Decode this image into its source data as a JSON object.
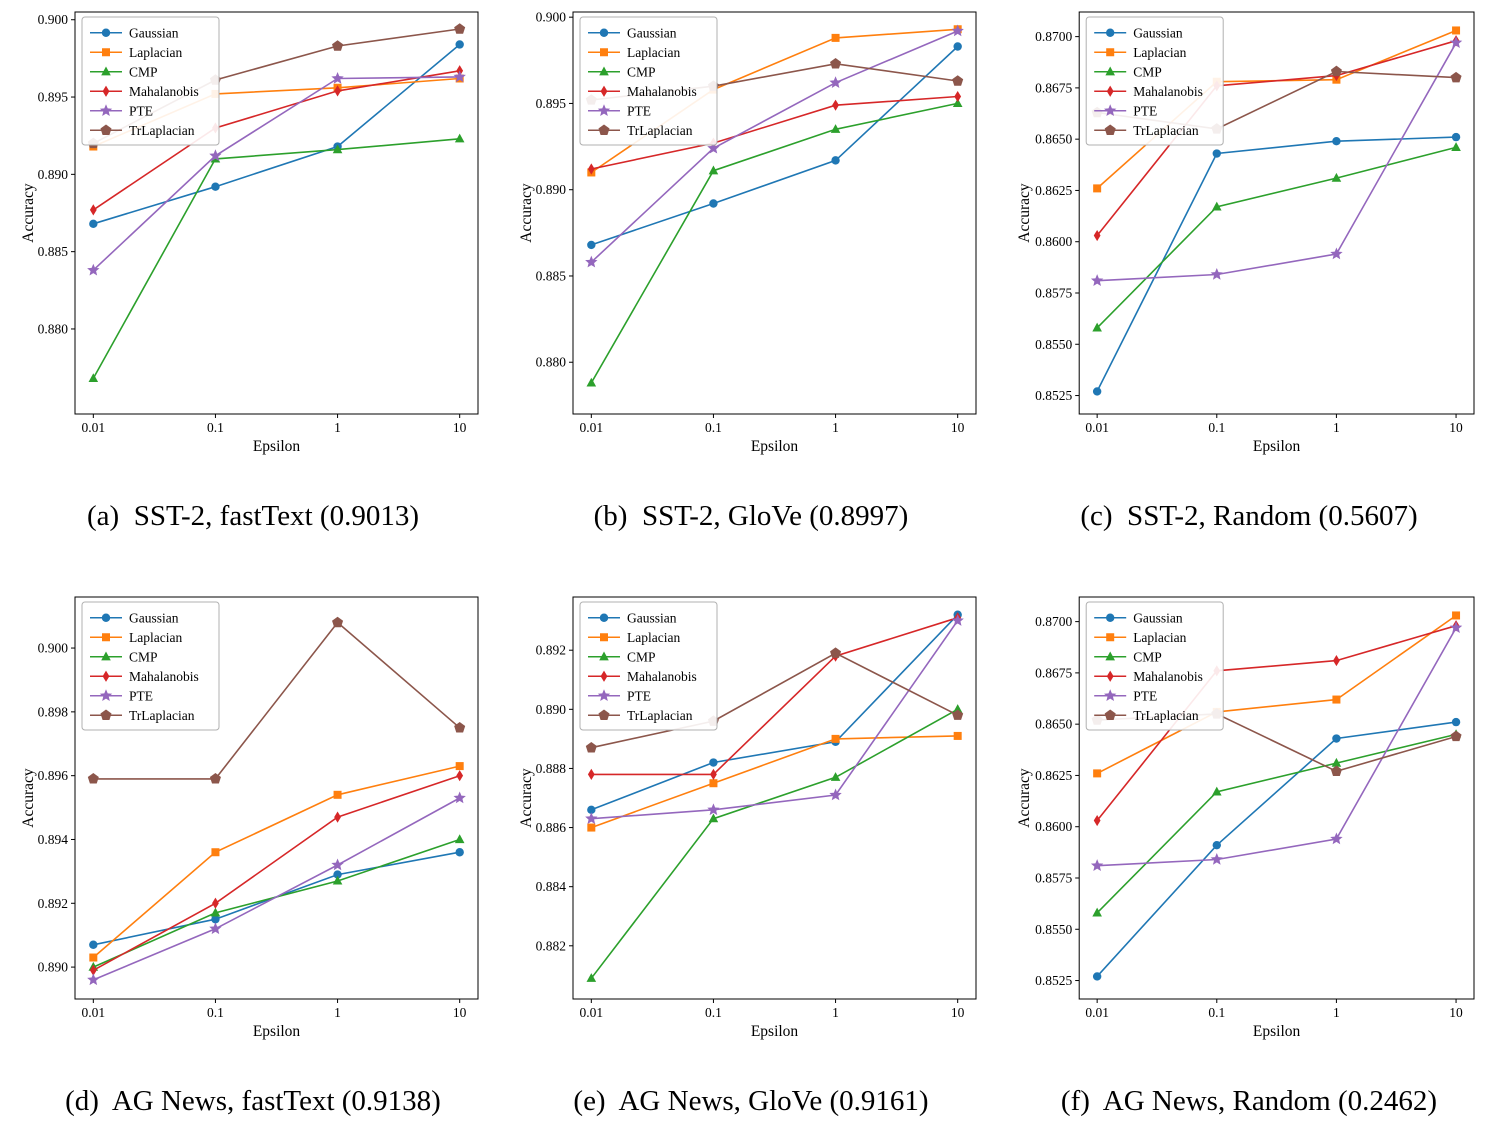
{
  "figure": {
    "background": "#ffffff",
    "xlabel": "Epsilon",
    "ylabel": "Accuracy",
    "legend_entries": [
      "Gaussian",
      "Laplacian",
      "CMP",
      "Mahalanobis",
      "PTE",
      "TrLaplacian"
    ],
    "series_colors": {
      "Gaussian": "#1f77b4",
      "Laplacian": "#ff7f0e",
      "CMP": "#2ca02c",
      "Mahalanobis": "#d62728",
      "PTE": "#9467bd",
      "TrLaplacian": "#8c564b"
    }
  },
  "chart_data": [
    {
      "id": "a",
      "type": "line",
      "caption": "(a)  SST-2, fastText (0.9013)",
      "xlabel": "Epsilon",
      "ylabel": "Accuracy",
      "xscale": "log",
      "x": [
        0.01,
        0.1,
        1,
        10
      ],
      "xticklabels": [
        "0.01",
        "0.1",
        "1",
        "10"
      ],
      "ylim": [
        0.8745,
        0.9005
      ],
      "yticks": [
        0.88,
        0.885,
        0.89,
        0.895,
        0.9
      ],
      "ytick_decimals": 3,
      "legend_position": "upper left",
      "series": [
        {
          "name": "Gaussian",
          "color": "#1f77b4",
          "marker": "circle",
          "values": [
            0.8868,
            0.8892,
            0.8918,
            0.8984
          ]
        },
        {
          "name": "Laplacian",
          "color": "#ff7f0e",
          "marker": "square",
          "values": [
            0.8918,
            0.8952,
            0.8956,
            0.8962
          ]
        },
        {
          "name": "CMP",
          "color": "#2ca02c",
          "marker": "triangle-up",
          "values": [
            0.8768,
            0.891,
            0.8916,
            0.8923
          ]
        },
        {
          "name": "Mahalanobis",
          "color": "#d62728",
          "marker": "thin-diamond",
          "values": [
            0.8877,
            0.893,
            0.8954,
            0.8967
          ]
        },
        {
          "name": "PTE",
          "color": "#9467bd",
          "marker": "star",
          "values": [
            0.8838,
            0.8912,
            0.8962,
            0.8963
          ]
        },
        {
          "name": "TrLaplacian",
          "color": "#8c564b",
          "marker": "pentagon",
          "values": [
            0.892,
            0.8961,
            0.8983,
            0.8994
          ]
        }
      ]
    },
    {
      "id": "b",
      "type": "line",
      "caption": "(b)  SST-2, GloVe (0.8997)",
      "xlabel": "Epsilon",
      "ylabel": "Accuracy",
      "xscale": "log",
      "x": [
        0.01,
        0.1,
        1,
        10
      ],
      "xticklabels": [
        "0.01",
        "0.1",
        "1",
        "10"
      ],
      "ylim": [
        0.877,
        0.9003
      ],
      "yticks": [
        0.88,
        0.885,
        0.89,
        0.895,
        0.9
      ],
      "ytick_decimals": 3,
      "legend_position": "upper left",
      "series": [
        {
          "name": "Gaussian",
          "color": "#1f77b4",
          "marker": "circle",
          "values": [
            0.8868,
            0.8892,
            0.8917,
            0.8983
          ]
        },
        {
          "name": "Laplacian",
          "color": "#ff7f0e",
          "marker": "square",
          "values": [
            0.891,
            0.8958,
            0.8988,
            0.8993
          ]
        },
        {
          "name": "CMP",
          "color": "#2ca02c",
          "marker": "triangle-up",
          "values": [
            0.8788,
            0.8911,
            0.8935,
            0.895
          ]
        },
        {
          "name": "Mahalanobis",
          "color": "#d62728",
          "marker": "thin-diamond",
          "values": [
            0.8912,
            0.8927,
            0.8949,
            0.8954
          ]
        },
        {
          "name": "PTE",
          "color": "#9467bd",
          "marker": "star",
          "values": [
            0.8858,
            0.8924,
            0.8962,
            0.8992
          ]
        },
        {
          "name": "TrLaplacian",
          "color": "#8c564b",
          "marker": "pentagon",
          "values": [
            0.8952,
            0.896,
            0.8973,
            0.8963
          ]
        }
      ]
    },
    {
      "id": "c",
      "type": "line",
      "caption": "(c)  SST-2, Random (0.5607)",
      "xlabel": "Epsilon",
      "ylabel": "Accuracy",
      "xscale": "log",
      "x": [
        0.01,
        0.1,
        1,
        10
      ],
      "xticklabels": [
        "0.01",
        "0.1",
        "1",
        "10"
      ],
      "ylim": [
        0.8516,
        0.8712
      ],
      "yticks": [
        0.8525,
        0.855,
        0.8575,
        0.86,
        0.8625,
        0.865,
        0.8675,
        0.87
      ],
      "ytick_decimals": 4,
      "legend_position": "upper left",
      "series": [
        {
          "name": "Gaussian",
          "color": "#1f77b4",
          "marker": "circle",
          "values": [
            0.8527,
            0.8643,
            0.8649,
            0.8651
          ]
        },
        {
          "name": "Laplacian",
          "color": "#ff7f0e",
          "marker": "square",
          "values": [
            0.8626,
            0.8678,
            0.8679,
            0.8703
          ]
        },
        {
          "name": "CMP",
          "color": "#2ca02c",
          "marker": "triangle-up",
          "values": [
            0.8558,
            0.8617,
            0.8631,
            0.8646
          ]
        },
        {
          "name": "Mahalanobis",
          "color": "#d62728",
          "marker": "thin-diamond",
          "values": [
            0.8603,
            0.8676,
            0.8681,
            0.8698
          ]
        },
        {
          "name": "PTE",
          "color": "#9467bd",
          "marker": "star",
          "values": [
            0.8581,
            0.8584,
            0.8594,
            0.8697
          ]
        },
        {
          "name": "TrLaplacian",
          "color": "#8c564b",
          "marker": "pentagon",
          "values": [
            0.8663,
            0.8655,
            0.8683,
            0.868
          ]
        }
      ]
    },
    {
      "id": "d",
      "type": "line",
      "caption": "(d)  AG News, fastText (0.9138)",
      "xlabel": "Epsilon",
      "ylabel": "Accuracy",
      "xscale": "log",
      "x": [
        0.01,
        0.1,
        1,
        10
      ],
      "xticklabels": [
        "0.01",
        "0.1",
        "1",
        "10"
      ],
      "ylim": [
        0.889,
        0.9016
      ],
      "yticks": [
        0.89,
        0.892,
        0.894,
        0.896,
        0.898,
        0.9
      ],
      "ytick_decimals": 3,
      "legend_position": "upper left",
      "series": [
        {
          "name": "Gaussian",
          "color": "#1f77b4",
          "marker": "circle",
          "values": [
            0.8907,
            0.8915,
            0.8929,
            0.8936
          ]
        },
        {
          "name": "Laplacian",
          "color": "#ff7f0e",
          "marker": "square",
          "values": [
            0.8903,
            0.8936,
            0.8954,
            0.8963
          ]
        },
        {
          "name": "CMP",
          "color": "#2ca02c",
          "marker": "triangle-up",
          "values": [
            0.89,
            0.8917,
            0.8927,
            0.894
          ]
        },
        {
          "name": "Mahalanobis",
          "color": "#d62728",
          "marker": "thin-diamond",
          "values": [
            0.8899,
            0.892,
            0.8947,
            0.896
          ]
        },
        {
          "name": "PTE",
          "color": "#9467bd",
          "marker": "star",
          "values": [
            0.8896,
            0.8912,
            0.8932,
            0.8953
          ]
        },
        {
          "name": "TrLaplacian",
          "color": "#8c564b",
          "marker": "pentagon",
          "values": [
            0.8959,
            0.8959,
            0.9008,
            0.8975
          ]
        }
      ]
    },
    {
      "id": "e",
      "type": "line",
      "caption": "(e)  AG News, GloVe (0.9161)",
      "xlabel": "Epsilon",
      "ylabel": "Accuracy",
      "xscale": "log",
      "x": [
        0.01,
        0.1,
        1,
        10
      ],
      "xticklabels": [
        "0.01",
        "0.1",
        "1",
        "10"
      ],
      "ylim": [
        0.8802,
        0.8938
      ],
      "yticks": [
        0.882,
        0.884,
        0.886,
        0.888,
        0.89,
        0.892
      ],
      "ytick_decimals": 3,
      "legend_position": "upper left",
      "series": [
        {
          "name": "Gaussian",
          "color": "#1f77b4",
          "marker": "circle",
          "values": [
            0.8866,
            0.8882,
            0.8889,
            0.8932
          ]
        },
        {
          "name": "Laplacian",
          "color": "#ff7f0e",
          "marker": "square",
          "values": [
            0.886,
            0.8875,
            0.889,
            0.8891
          ]
        },
        {
          "name": "CMP",
          "color": "#2ca02c",
          "marker": "triangle-up",
          "values": [
            0.8809,
            0.8863,
            0.8877,
            0.89
          ]
        },
        {
          "name": "Mahalanobis",
          "color": "#d62728",
          "marker": "thin-diamond",
          "values": [
            0.8878,
            0.8878,
            0.8918,
            0.8931
          ]
        },
        {
          "name": "PTE",
          "color": "#9467bd",
          "marker": "star",
          "values": [
            0.8863,
            0.8866,
            0.8871,
            0.893
          ]
        },
        {
          "name": "TrLaplacian",
          "color": "#8c564b",
          "marker": "pentagon",
          "values": [
            0.8887,
            0.8896,
            0.8919,
            0.8898
          ]
        }
      ]
    },
    {
      "id": "f",
      "type": "line",
      "caption": "(f)  AG News, Random (0.2462)",
      "xlabel": "Epsilon",
      "ylabel": "Accuracy",
      "xscale": "log",
      "x": [
        0.01,
        0.1,
        1,
        10
      ],
      "xticklabels": [
        "0.01",
        "0.1",
        "1",
        "10"
      ],
      "ylim": [
        0.8516,
        0.8712
      ],
      "yticks": [
        0.8525,
        0.855,
        0.8575,
        0.86,
        0.8625,
        0.865,
        0.8675,
        0.87
      ],
      "ytick_decimals": 4,
      "legend_position": "upper left",
      "series": [
        {
          "name": "Gaussian",
          "color": "#1f77b4",
          "marker": "circle",
          "values": [
            0.8527,
            0.8591,
            0.8643,
            0.8651
          ]
        },
        {
          "name": "Laplacian",
          "color": "#ff7f0e",
          "marker": "square",
          "values": [
            0.8626,
            0.8656,
            0.8662,
            0.8703
          ]
        },
        {
          "name": "CMP",
          "color": "#2ca02c",
          "marker": "triangle-up",
          "values": [
            0.8558,
            0.8617,
            0.8631,
            0.8645
          ]
        },
        {
          "name": "Mahalanobis",
          "color": "#d62728",
          "marker": "thin-diamond",
          "values": [
            0.8603,
            0.8676,
            0.8681,
            0.8698
          ]
        },
        {
          "name": "PTE",
          "color": "#9467bd",
          "marker": "star",
          "values": [
            0.8581,
            0.8584,
            0.8594,
            0.8697
          ]
        },
        {
          "name": "TrLaplacian",
          "color": "#8c564b",
          "marker": "pentagon",
          "values": [
            0.8652,
            0.8655,
            0.8627,
            0.8644
          ]
        }
      ]
    }
  ]
}
